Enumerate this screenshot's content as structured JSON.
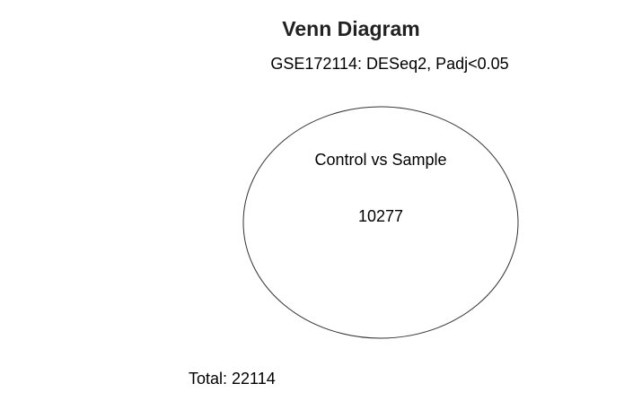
{
  "diagram": {
    "title": "Venn Diagram",
    "subtitle": "GSE172114: DESeq2, Padj<0.05",
    "sets": [
      {
        "label": "Control vs Sample",
        "count": "10277"
      }
    ],
    "total": "Total: 22114",
    "colors": {
      "title": "#222222",
      "text": "#000000",
      "outline": "#333333",
      "background": "#ffffff"
    }
  }
}
